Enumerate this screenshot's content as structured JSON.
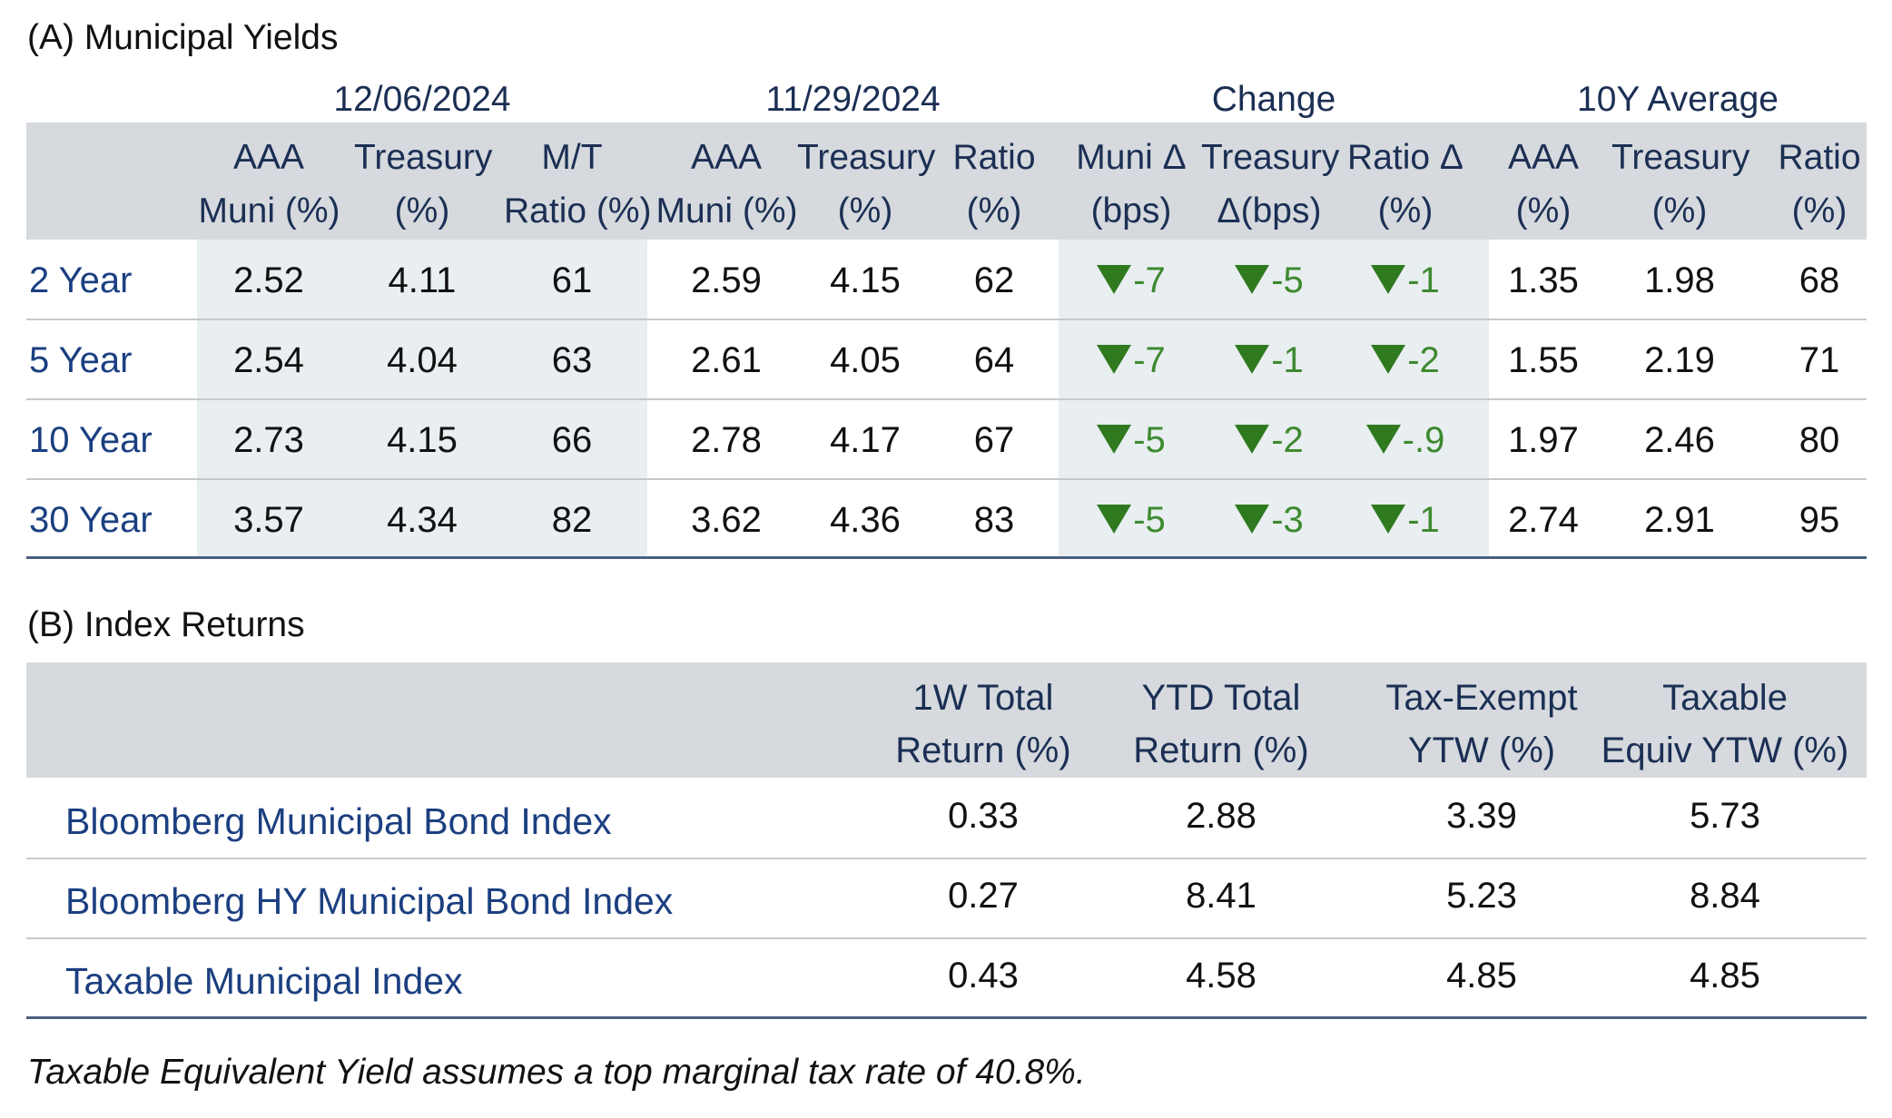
{
  "section_a": {
    "title": "(A) Municipal Yields",
    "groups": [
      "12/06/2024",
      "11/29/2024",
      "Change",
      "10Y Average"
    ],
    "columns": [
      [
        "AAA",
        "Muni (%)"
      ],
      [
        "Treasury",
        "(%)"
      ],
      [
        "M/T",
        "Ratio (%)"
      ],
      [
        "AAA",
        "Muni (%)"
      ],
      [
        "Treasury",
        "(%)"
      ],
      [
        "Ratio",
        "(%)"
      ],
      [
        "Muni Δ",
        "(bps)"
      ],
      [
        "Treasury",
        "Δ(bps)"
      ],
      [
        "Ratio Δ",
        "(%)"
      ],
      [
        "AAA",
        "(%)"
      ],
      [
        "Treasury",
        "(%)"
      ],
      [
        "Ratio",
        "(%)"
      ]
    ],
    "rows": [
      {
        "label": "2 Year",
        "values": [
          "2.52",
          "4.11",
          "61",
          "2.59",
          "4.15",
          "62",
          "-7",
          "-5",
          "-1",
          "1.35",
          "1.98",
          "68"
        ]
      },
      {
        "label": "5 Year",
        "values": [
          "2.54",
          "4.04",
          "63",
          "2.61",
          "4.05",
          "64",
          "-7",
          "-1",
          "-2",
          "1.55",
          "2.19",
          "71"
        ]
      },
      {
        "label": "10 Year",
        "values": [
          "2.73",
          "4.15",
          "66",
          "2.78",
          "4.17",
          "67",
          "-5",
          "-2",
          "-.9",
          "1.97",
          "2.46",
          "80"
        ]
      },
      {
        "label": "30 Year",
        "values": [
          "3.57",
          "4.34",
          "82",
          "3.62",
          "4.36",
          "83",
          "-5",
          "-3",
          "-1",
          "2.74",
          "2.91",
          "95"
        ]
      }
    ],
    "change_direction": "down",
    "change_color": "#2f7a1f"
  },
  "section_b": {
    "title": "(B) Index Returns",
    "columns": [
      [
        "1W Total",
        "Return (%)"
      ],
      [
        "YTD Total",
        "Return (%)"
      ],
      [
        "Tax-Exempt",
        "YTW (%)"
      ],
      [
        "Taxable",
        "Equiv YTW (%)"
      ]
    ],
    "rows": [
      {
        "label": "Bloomberg Municipal Bond Index",
        "values": [
          "0.33",
          "2.88",
          "3.39",
          "5.73"
        ]
      },
      {
        "label": "Bloomberg HY Municipal Bond Index",
        "values": [
          "0.27",
          "8.41",
          "5.23",
          "8.84"
        ]
      },
      {
        "label": "Taxable Municipal Index",
        "values": [
          "0.43",
          "4.58",
          "4.85",
          "4.85"
        ]
      }
    ]
  },
  "footnote": "Taxable Equivalent Yield assumes a top marginal tax rate of 40.8%.",
  "colors": {
    "header_band": "#d6d9dd",
    "shaded_columns": "#e9eef1",
    "label_text": "#1b3f80",
    "rule_dark": "#4a5f80"
  }
}
